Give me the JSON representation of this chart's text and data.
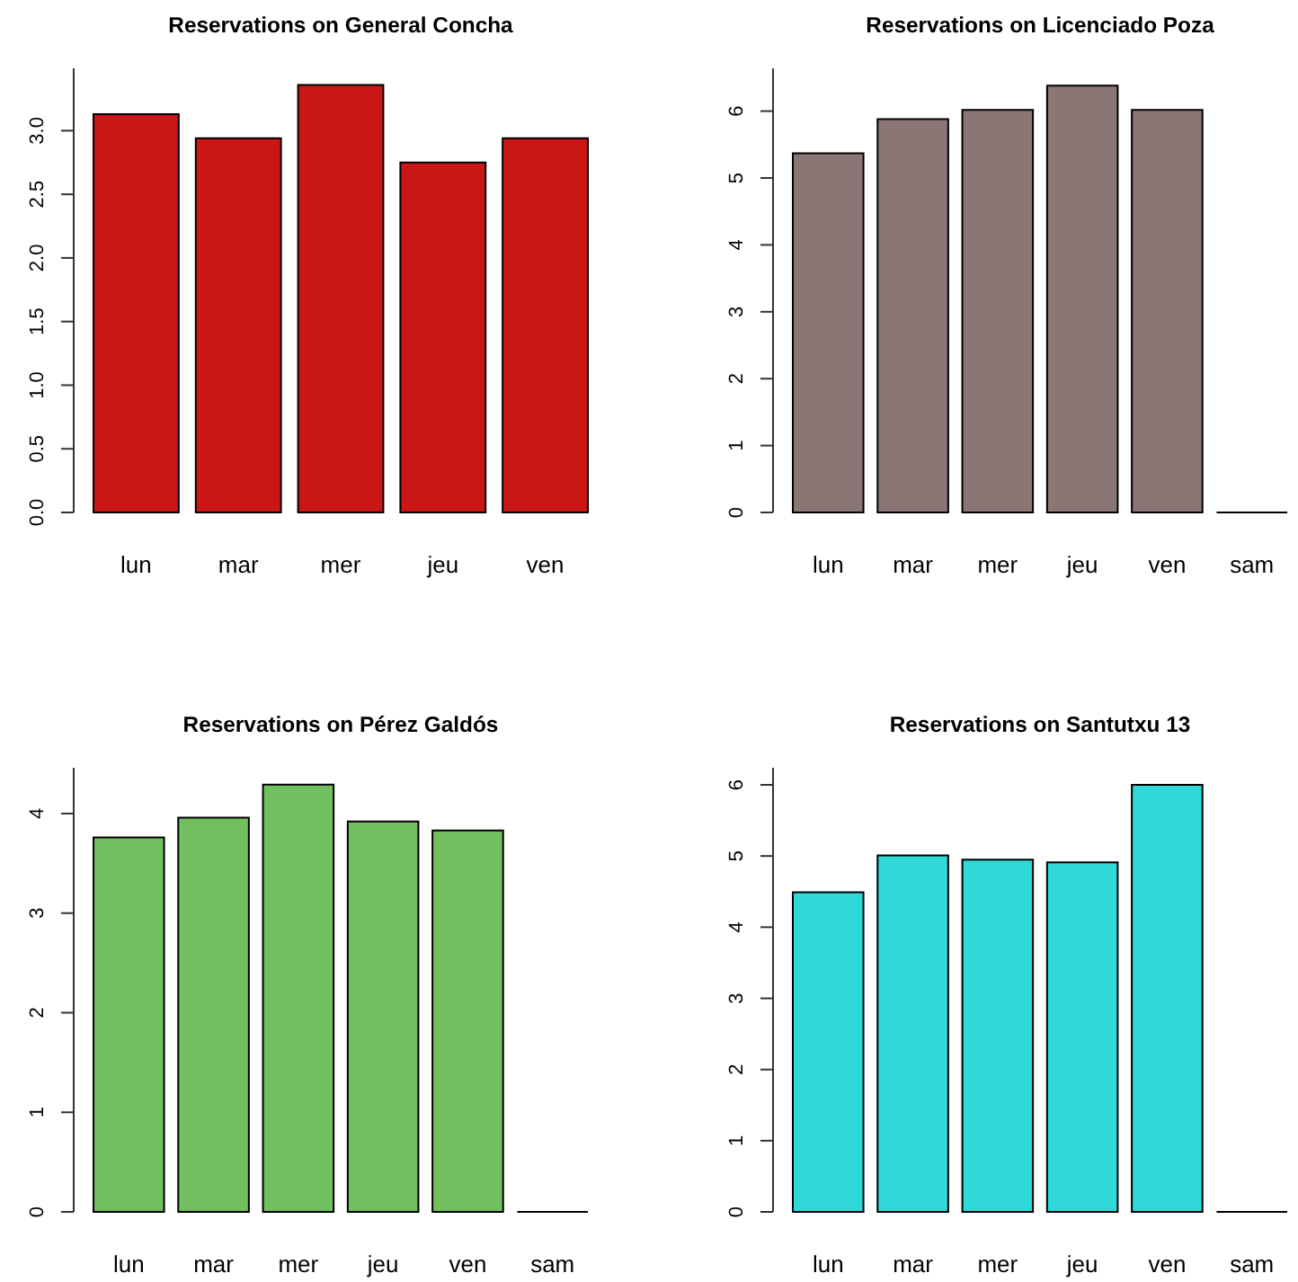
{
  "chart_data": [
    {
      "type": "bar",
      "title": "Reservations on General Concha",
      "categories": [
        "lun",
        "mar",
        "mer",
        "jeu",
        "ven"
      ],
      "values": [
        3.13,
        2.94,
        3.36,
        2.75,
        2.94
      ],
      "color": "#cb1616",
      "ylim": [
        0,
        3.49
      ],
      "yticks": [
        {
          "value": 0,
          "label": "0.0"
        },
        {
          "value": 0.5,
          "label": "0.5"
        },
        {
          "value": 1,
          "label": "1.0"
        },
        {
          "value": 1.5,
          "label": "1.5"
        },
        {
          "value": 2,
          "label": "2.0"
        },
        {
          "value": 2.5,
          "label": "2.5"
        },
        {
          "value": 3,
          "label": "3.0"
        }
      ]
    },
    {
      "type": "bar",
      "title": "Reservations on Licenciado Poza",
      "categories": [
        "lun",
        "mar",
        "mer",
        "jeu",
        "ven",
        "sam"
      ],
      "values": [
        5.37,
        5.88,
        6.02,
        6.38,
        6.02,
        0
      ],
      "colors": [
        "#8a7674",
        "#8a7674",
        "#8a7674",
        "#8a7674",
        "#8a7674",
        "#000000"
      ],
      "ylim": [
        0,
        6.64
      ],
      "yticks": [
        0,
        1,
        2,
        3,
        4,
        5,
        6
      ]
    },
    {
      "type": "bar",
      "title": "Reservations on Pérez Galdós",
      "categories": [
        "lun",
        "mar",
        "mer",
        "jeu",
        "ven",
        "sam"
      ],
      "values": [
        3.76,
        3.96,
        4.29,
        3.92,
        3.83,
        0
      ],
      "colors": [
        "#72bf60",
        "#72bf60",
        "#72bf60",
        "#72bf60",
        "#72bf60",
        "#000000"
      ],
      "ylim": [
        0,
        4.46
      ],
      "yticks": [
        0,
        1,
        2,
        3,
        4
      ]
    },
    {
      "type": "bar",
      "title": "Reservations on Santutxu 13",
      "categories": [
        "lun",
        "mar",
        "mer",
        "jeu",
        "ven",
        "sam"
      ],
      "values": [
        4.49,
        5.01,
        4.95,
        4.91,
        6.0,
        0
      ],
      "colors": [
        "#2ed9d8",
        "#2ed9d8",
        "#2ed9d8",
        "#2ed9d8",
        "#2ed9d8",
        "#000000"
      ],
      "ylim": [
        0,
        6.24
      ],
      "yticks": [
        0,
        1,
        2,
        3,
        4,
        5,
        6
      ]
    }
  ]
}
